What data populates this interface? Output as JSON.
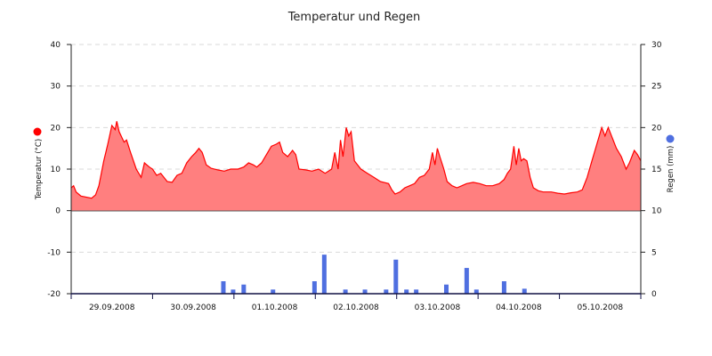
{
  "chart_data": {
    "type": "area",
    "title": "Temperatur und Regen",
    "x_tick_labels": [
      "29.09.2008",
      "30.09.2008",
      "01.10.2008",
      "02.10.2008",
      "03.10.2008",
      "04.10.2008",
      "05.10.2008"
    ],
    "x_range_days": [
      0,
      7
    ],
    "y_left": {
      "label": "Temperatur (°C)",
      "range": [
        -20,
        40
      ],
      "ticks": [
        -20,
        -10,
        0,
        10,
        20,
        30,
        40
      ],
      "marker_color": "#ff0000"
    },
    "y_right": {
      "label": "Regen (mm)",
      "range": [
        0,
        30
      ],
      "ticks": [
        0,
        5,
        10,
        15,
        20,
        25,
        30
      ],
      "marker_color": "#4f6fe0"
    },
    "grid": true,
    "series": [
      {
        "name": "Temperatur",
        "type": "area",
        "color": "#ff0000",
        "fill": "#ff7f7f",
        "points": [
          [
            0.0,
            5.5
          ],
          [
            0.03,
            6.0
          ],
          [
            0.06,
            4.5
          ],
          [
            0.12,
            3.5
          ],
          [
            0.25,
            3.0
          ],
          [
            0.3,
            3.8
          ],
          [
            0.34,
            6.0
          ],
          [
            0.4,
            12.0
          ],
          [
            0.45,
            16.0
          ],
          [
            0.5,
            20.5
          ],
          [
            0.54,
            19.5
          ],
          [
            0.56,
            21.5
          ],
          [
            0.59,
            19.0
          ],
          [
            0.65,
            16.5
          ],
          [
            0.68,
            17.0
          ],
          [
            0.73,
            14.0
          ],
          [
            0.8,
            10.0
          ],
          [
            0.86,
            8.0
          ],
          [
            0.9,
            11.5
          ],
          [
            0.96,
            10.5
          ],
          [
            1.0,
            10.0
          ],
          [
            1.05,
            8.5
          ],
          [
            1.1,
            9.0
          ],
          [
            1.18,
            7.0
          ],
          [
            1.24,
            6.8
          ],
          [
            1.3,
            8.5
          ],
          [
            1.36,
            9.0
          ],
          [
            1.42,
            11.5
          ],
          [
            1.48,
            13.0
          ],
          [
            1.53,
            14.0
          ],
          [
            1.57,
            15.0
          ],
          [
            1.61,
            14.0
          ],
          [
            1.66,
            11.0
          ],
          [
            1.72,
            10.2
          ],
          [
            1.8,
            9.8
          ],
          [
            1.88,
            9.5
          ],
          [
            1.96,
            10.0
          ],
          [
            2.05,
            10.0
          ],
          [
            2.12,
            10.5
          ],
          [
            2.18,
            11.5
          ],
          [
            2.24,
            11.0
          ],
          [
            2.28,
            10.5
          ],
          [
            2.34,
            11.5
          ],
          [
            2.4,
            13.5
          ],
          [
            2.46,
            15.5
          ],
          [
            2.52,
            16.0
          ],
          [
            2.56,
            16.5
          ],
          [
            2.6,
            14.0
          ],
          [
            2.66,
            13.0
          ],
          [
            2.72,
            14.5
          ],
          [
            2.76,
            13.5
          ],
          [
            2.8,
            10.0
          ],
          [
            2.88,
            9.8
          ],
          [
            2.96,
            9.5
          ],
          [
            3.04,
            10.0
          ],
          [
            3.12,
            9.0
          ],
          [
            3.2,
            10.0
          ],
          [
            3.24,
            14.0
          ],
          [
            3.28,
            10.0
          ],
          [
            3.31,
            17.0
          ],
          [
            3.34,
            13.0
          ],
          [
            3.38,
            20.0
          ],
          [
            3.41,
            18.0
          ],
          [
            3.44,
            19.0
          ],
          [
            3.48,
            12.0
          ],
          [
            3.56,
            10.0
          ],
          [
            3.64,
            9.0
          ],
          [
            3.72,
            8.0
          ],
          [
            3.8,
            7.0
          ],
          [
            3.9,
            6.5
          ],
          [
            3.94,
            5.0
          ],
          [
            3.98,
            4.0
          ],
          [
            4.04,
            4.5
          ],
          [
            4.1,
            5.5
          ],
          [
            4.16,
            6.0
          ],
          [
            4.22,
            6.5
          ],
          [
            4.28,
            8.0
          ],
          [
            4.34,
            8.5
          ],
          [
            4.4,
            10.0
          ],
          [
            4.44,
            14.0
          ],
          [
            4.47,
            11.0
          ],
          [
            4.5,
            15.0
          ],
          [
            4.53,
            13.0
          ],
          [
            4.58,
            10.0
          ],
          [
            4.62,
            7.0
          ],
          [
            4.68,
            6.0
          ],
          [
            4.74,
            5.5
          ],
          [
            4.8,
            6.0
          ],
          [
            4.86,
            6.5
          ],
          [
            4.94,
            6.8
          ],
          [
            5.02,
            6.5
          ],
          [
            5.1,
            6.0
          ],
          [
            5.18,
            6.0
          ],
          [
            5.26,
            6.5
          ],
          [
            5.32,
            7.5
          ],
          [
            5.36,
            9.0
          ],
          [
            5.4,
            10.0
          ],
          [
            5.44,
            15.5
          ],
          [
            5.47,
            11.0
          ],
          [
            5.5,
            15.0
          ],
          [
            5.53,
            12.0
          ],
          [
            5.56,
            12.5
          ],
          [
            5.6,
            12.0
          ],
          [
            5.64,
            8.0
          ],
          [
            5.68,
            5.5
          ],
          [
            5.74,
            4.8
          ],
          [
            5.8,
            4.5
          ],
          [
            5.9,
            4.5
          ],
          [
            5.98,
            4.2
          ],
          [
            6.06,
            4.0
          ],
          [
            6.14,
            4.3
          ],
          [
            6.22,
            4.5
          ],
          [
            6.28,
            5.0
          ],
          [
            6.34,
            8.0
          ],
          [
            6.4,
            12.0
          ],
          [
            6.46,
            16.0
          ],
          [
            6.52,
            20.0
          ],
          [
            6.56,
            18.0
          ],
          [
            6.6,
            20.0
          ],
          [
            6.64,
            18.0
          ],
          [
            6.7,
            15.0
          ],
          [
            6.76,
            13.0
          ],
          [
            6.82,
            10.0
          ],
          [
            6.86,
            11.5
          ],
          [
            6.92,
            14.5
          ],
          [
            6.96,
            13.5
          ],
          [
            7.0,
            12.0
          ]
        ]
      },
      {
        "name": "Regen",
        "type": "bar",
        "color": "#4f6fe0",
        "points": [
          [
            1.87,
            1.5
          ],
          [
            1.99,
            0.5
          ],
          [
            2.12,
            1.1
          ],
          [
            2.48,
            0.5
          ],
          [
            2.99,
            1.5
          ],
          [
            3.11,
            4.7
          ],
          [
            3.37,
            0.5
          ],
          [
            3.61,
            0.5
          ],
          [
            3.87,
            0.5
          ],
          [
            3.99,
            4.1
          ],
          [
            4.12,
            0.5
          ],
          [
            4.24,
            0.5
          ],
          [
            4.61,
            1.1
          ],
          [
            4.86,
            3.1
          ],
          [
            4.98,
            0.5
          ],
          [
            5.32,
            1.5
          ],
          [
            5.57,
            0.6
          ]
        ]
      }
    ]
  }
}
